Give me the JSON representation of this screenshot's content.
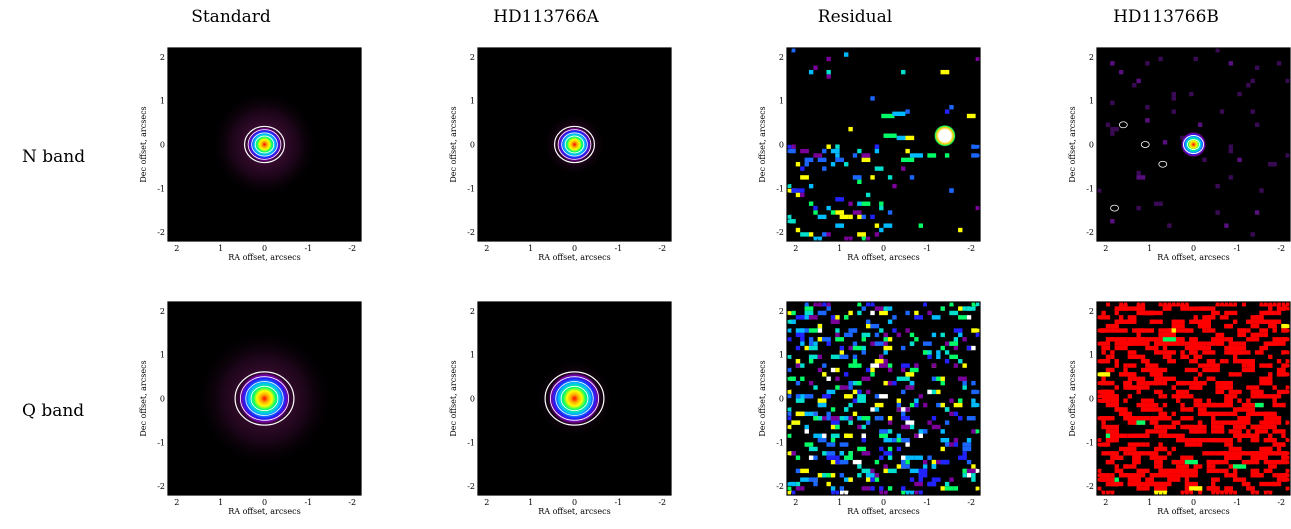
{
  "columns": [
    "Standard",
    "HD113766A",
    "Residual",
    "HD113766B"
  ],
  "rows": [
    "N band",
    "Q band"
  ],
  "axes": {
    "xlabel": "RA offset, arcsecs",
    "ylabel": "Dec offset, arcsecs",
    "x_ticks": [
      "2",
      "1",
      "0",
      "-1",
      "-2"
    ],
    "y_ticks": [
      "2",
      "1",
      "0",
      "-1",
      "-2"
    ],
    "xlim": [
      2.2,
      -2.2
    ],
    "ylim": [
      -2.2,
      2.2
    ]
  },
  "colors": {
    "background": "#000000",
    "contour": "#ffffff",
    "residual_q_noise": "#ff0000"
  },
  "chart_data": [
    {
      "type": "heatmap",
      "row": "N band",
      "column": "Standard",
      "source_offset": [
        0,
        0
      ],
      "contours": 4,
      "content": "point source, strong halo"
    },
    {
      "type": "heatmap",
      "row": "N band",
      "column": "HD113766A",
      "source_offset": [
        0,
        0
      ],
      "contours": 4,
      "content": "point source"
    },
    {
      "type": "heatmap",
      "row": "N band",
      "column": "Residual",
      "source_offset": [
        -1.4,
        0.2
      ],
      "contours": 0,
      "content": "bright compact residual plus sparse noise"
    },
    {
      "type": "heatmap",
      "row": "N band",
      "column": "HD113766B",
      "source_offset": [
        0,
        0
      ],
      "contours": 2,
      "content": "faint point source with noise islands"
    },
    {
      "type": "heatmap",
      "row": "Q band",
      "column": "Standard",
      "source_offset": [
        0,
        0
      ],
      "contours": 4,
      "content": "point source with diffraction ring"
    },
    {
      "type": "heatmap",
      "row": "Q band",
      "column": "HD113766A",
      "source_offset": [
        0,
        0
      ],
      "contours": 4,
      "content": "point source"
    },
    {
      "type": "heatmap",
      "row": "Q band",
      "column": "Residual",
      "source_offset": null,
      "contours": 0,
      "content": "noise only"
    },
    {
      "type": "heatmap",
      "row": "Q band",
      "column": "HD113766B",
      "source_offset": null,
      "contours": 0,
      "content": "saturated red noise"
    }
  ]
}
